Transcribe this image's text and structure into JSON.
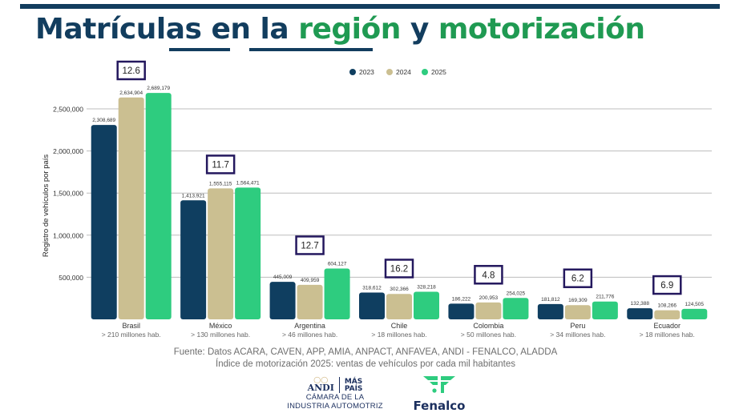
{
  "header": {
    "title_part1": "Matrículas en la ",
    "title_part2": "región",
    "title_part3": " y ",
    "title_part4": "motorización"
  },
  "colors": {
    "navy": "#123d5e",
    "green_title": "#1f9a52",
    "series_2023": "#0f3e60",
    "series_2024": "#cbbf91",
    "series_2025": "#2ecc7f",
    "box_border": "#24185e"
  },
  "chart_data": {
    "type": "bar",
    "title": "Matrículas en la región y motorización",
    "ylabel": "Registro de vehículos por país",
    "xlabel": "",
    "ylim": [
      0,
      2500000
    ],
    "yticks": [
      500000,
      1000000,
      1500000,
      2000000,
      2500000
    ],
    "ytick_labels": [
      "500,000",
      "1,000,000",
      "1,500,000",
      "2,000,000",
      "2,500,000"
    ],
    "grid": true,
    "legend_position": "top-center",
    "categories": [
      "Brasil",
      "México",
      "Argentina",
      "Chile",
      "Colombia",
      "Peru",
      "Ecuador"
    ],
    "category_sublabels": [
      "> 210 millones hab.",
      "> 130 millones hab.",
      "> 46 millones hab.",
      "> 18 millones hab.",
      "> 50 millones hab.",
      "> 34 millones hab.",
      "> 18 millones hab."
    ],
    "series": [
      {
        "name": "2023",
        "values": [
          2308689,
          1413921,
          445009,
          318612,
          186222,
          181812,
          132388
        ],
        "labels": [
          "2,308,689",
          "1,413,921",
          "445,009",
          "318,612",
          "186,222",
          "181,812",
          "132,388"
        ]
      },
      {
        "name": "2024",
        "values": [
          2634904,
          1555115,
          409959,
          302366,
          200953,
          169309,
          108266
        ],
        "labels": [
          "2,634,904",
          "1,555,115",
          "409,959",
          "302,366",
          "200,953",
          "169,309",
          "108,266"
        ]
      },
      {
        "name": "2025",
        "values": [
          2689179,
          1564471,
          604127,
          328218,
          254025,
          211776,
          124505
        ],
        "labels": [
          "2,689,179",
          "1,564,471",
          "604,127",
          "328,218",
          "254,025",
          "211,776",
          "124,505"
        ]
      }
    ],
    "motorization_index_2025": [
      12.6,
      11.7,
      12.7,
      16.2,
      4.8,
      6.2,
      6.9
    ],
    "motorization_labels": [
      "12.6",
      "11.7",
      "12.7",
      "16.2",
      "4.8",
      "6.2",
      "6.9"
    ]
  },
  "footer": {
    "source": "Fuente: Datos ACARA, CAVEN, APP, AMIA, ANPACT, ANFAVEA, ANDI - FENALCO, ALADDA",
    "index_note": "Índice de motorización 2025:  ventas de vehículos por cada mil habitantes",
    "logo_andi": "ANDI",
    "logo_mas_pais_1": "MÁS",
    "logo_mas_pais_2": "PAÍS",
    "logo_camara_1": "CÁMARA DE LA",
    "logo_camara_2": "INDUSTRIA AUTOMOTRIZ",
    "logo_fenalco": "Fenalco"
  }
}
